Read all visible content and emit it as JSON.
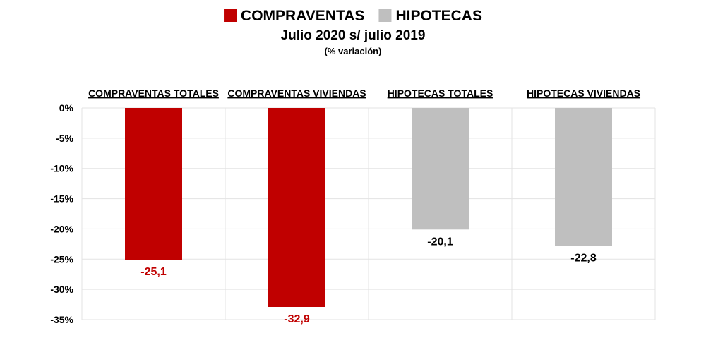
{
  "chart_data": {
    "type": "bar",
    "title": "Julio 2020  s/ julio 2019",
    "subtitle": "(% variación)",
    "legend": [
      {
        "name": "COMPRAVENTAS",
        "color": "#c00000"
      },
      {
        "name": "HIPOTECAS",
        "color": "#bfbfbf"
      }
    ],
    "legend_position": "top-center",
    "categories": [
      "COMPRAVENTAS TOTALES",
      "COMPRAVENTAS VIVIENDAS",
      "HIPOTECAS TOTALES",
      "HIPOTECAS VIVIENDAS"
    ],
    "values": [
      -25.1,
      -32.9,
      -20.1,
      -22.8
    ],
    "data_labels": [
      "-25,1",
      "-32,9",
      "-20,1",
      "-22,8"
    ],
    "bar_colors": [
      "#c00000",
      "#c00000",
      "#bfbfbf",
      "#bfbfbf"
    ],
    "label_colors": [
      "#c00000",
      "#c00000",
      "#000000",
      "#000000"
    ],
    "yticks": [
      0,
      -5,
      -10,
      -15,
      -20,
      -25,
      -30,
      -35
    ],
    "ytick_labels": [
      "0%",
      "-5%",
      "-10%",
      "-15%",
      "-20%",
      "-25%",
      "-30%",
      "-35%"
    ],
    "ylim": [
      -35,
      0
    ],
    "grid": true,
    "xlabel": "",
    "ylabel": ""
  }
}
